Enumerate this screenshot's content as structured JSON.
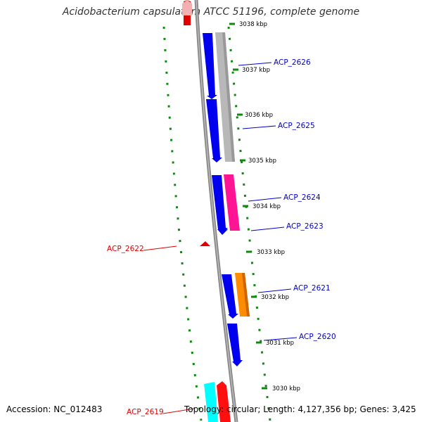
{
  "title": "Acidobacterium capsulatum ATCC 51196, complete genome",
  "footer": {
    "accession_label": "Accession:",
    "accession": "NC_012483",
    "topology_label": "Topology:",
    "topology": "circular",
    "length_label": "Length:",
    "length": "4,127,356 bp",
    "genes_label": "Genes:",
    "genes": "3,425"
  },
  "ticks": [
    {
      "label": "3038 kbp"
    },
    {
      "label": "3037 kbp"
    },
    {
      "label": "3036 kbp"
    },
    {
      "label": "3035 kbp"
    },
    {
      "label": "3034 kbp"
    },
    {
      "label": "3033 kbp"
    },
    {
      "label": "3032 kbp"
    },
    {
      "label": "3031 kbp"
    },
    {
      "label": "3030 kbp"
    }
  ],
  "gene_labels": [
    {
      "label": "ACP_2626",
      "color": "#0000cc"
    },
    {
      "label": "ACP_2625",
      "color": "#0000cc"
    },
    {
      "label": "ACP_2624",
      "color": "#0000cc"
    },
    {
      "label": "ACP_2623",
      "color": "#0000cc"
    },
    {
      "label": "ACP_2622",
      "color": "#e00000"
    },
    {
      "label": "ACP_2621",
      "color": "#0000cc"
    },
    {
      "label": "ACP_2620",
      "color": "#0000cc"
    },
    {
      "label": "ACP_2619",
      "color": "#e00000"
    }
  ],
  "colors": {
    "backbone": "#888888",
    "cds": "#0000ee",
    "gc_skew": "#118811",
    "ticks": "#118811"
  }
}
